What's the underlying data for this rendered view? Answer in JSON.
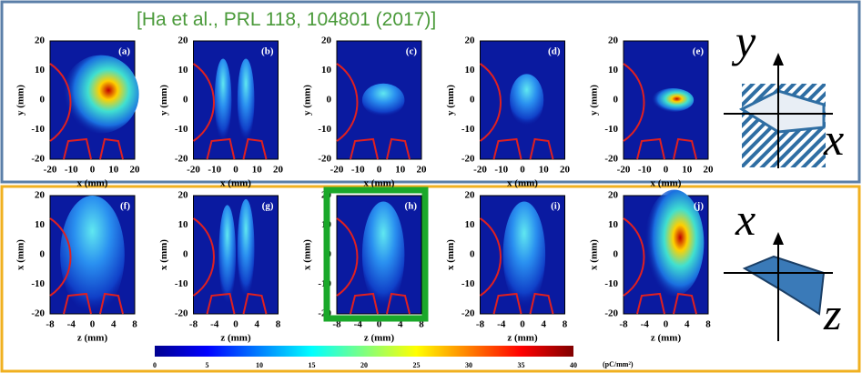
{
  "citation": "[Ha et al., PRL 118, 104801 (2017)]",
  "rows": [
    {
      "y_label": "y (mm)",
      "x_label": "x (mm)",
      "yticks": [
        20,
        10,
        0,
        -10,
        -20
      ],
      "xticks": [
        -20,
        -10,
        0,
        10,
        20
      ],
      "panels": [
        "(a)",
        "(b)",
        "(c)",
        "(d)",
        "(e)"
      ]
    },
    {
      "y_label": "x (mm)",
      "x_label": "z (mm)",
      "yticks": [
        20,
        10,
        0,
        -10,
        -20
      ],
      "xticks": [
        -8,
        -4,
        0,
        4,
        8
      ],
      "panels": [
        "(f)",
        "(g)",
        "(h)",
        "(i)",
        "(j)"
      ]
    }
  ],
  "colorbar": {
    "ticks": [
      0,
      5,
      10,
      15,
      20,
      25,
      30,
      35,
      40
    ],
    "unit": "(pC/mm²)"
  },
  "icons": [
    {
      "vertical": "y",
      "horizontal": "x"
    },
    {
      "vertical": "x",
      "horizontal": "z"
    }
  ]
}
